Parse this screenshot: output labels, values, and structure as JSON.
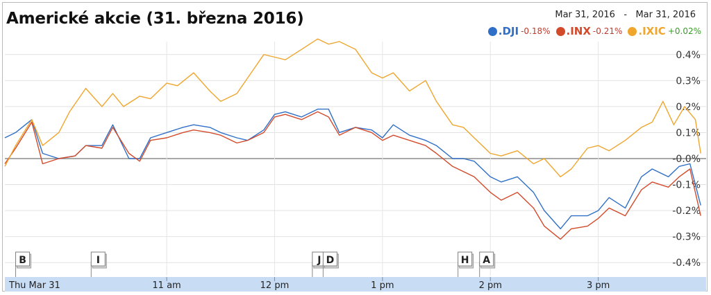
{
  "chart_data": {
    "type": "line",
    "title": "Americké akcie (31. března 2016)",
    "date_range": {
      "start": "Mar 31, 2016",
      "separator": "-",
      "end": "Mar 31, 2016"
    },
    "x_axis": {
      "ticks": [
        {
          "t": 9.5,
          "label": "Thu Mar 31"
        },
        {
          "t": 11,
          "label": "11 am"
        },
        {
          "t": 12,
          "label": "12 pm"
        },
        {
          "t": 13,
          "label": "1 pm"
        },
        {
          "t": 14,
          "label": "2 pm"
        },
        {
          "t": 15,
          "label": "3 pm"
        }
      ]
    },
    "y_axis": {
      "unit": "%",
      "ylim": [
        -0.45,
        0.45
      ],
      "ticks": [
        {
          "v": 0.4,
          "label": "0.4%"
        },
        {
          "v": 0.3,
          "label": "0.3%"
        },
        {
          "v": 0.2,
          "label": "0.2%"
        },
        {
          "v": 0.1,
          "label": "0.1%"
        },
        {
          "v": 0.0,
          "label": "-0.0%"
        },
        {
          "v": -0.1,
          "label": "-0.1%"
        },
        {
          "v": -0.2,
          "label": "-0.2%"
        },
        {
          "v": -0.3,
          "label": "-0.3%"
        },
        {
          "v": -0.4,
          "label": "-0.4%"
        }
      ]
    },
    "grid": true,
    "legend_position": "top-right",
    "series": [
      {
        "name": ".DJI",
        "change": "-0.18%",
        "color": "#2f6fc7",
        "change_color": "#c0392b",
        "points": [
          [
            9.5,
            0.08
          ],
          [
            9.6,
            0.1
          ],
          [
            9.75,
            0.15
          ],
          [
            9.85,
            0.02
          ],
          [
            10.0,
            0.0
          ],
          [
            10.15,
            0.01
          ],
          [
            10.25,
            0.05
          ],
          [
            10.4,
            0.05
          ],
          [
            10.5,
            0.13
          ],
          [
            10.65,
            0.0
          ],
          [
            10.75,
            0.0
          ],
          [
            10.85,
            0.08
          ],
          [
            11.0,
            0.1
          ],
          [
            11.15,
            0.12
          ],
          [
            11.25,
            0.13
          ],
          [
            11.4,
            0.12
          ],
          [
            11.5,
            0.1
          ],
          [
            11.65,
            0.08
          ],
          [
            11.75,
            0.07
          ],
          [
            11.9,
            0.11
          ],
          [
            12.0,
            0.17
          ],
          [
            12.1,
            0.18
          ],
          [
            12.25,
            0.16
          ],
          [
            12.4,
            0.19
          ],
          [
            12.5,
            0.19
          ],
          [
            12.6,
            0.1
          ],
          [
            12.75,
            0.12
          ],
          [
            12.9,
            0.11
          ],
          [
            13.0,
            0.08
          ],
          [
            13.1,
            0.13
          ],
          [
            13.25,
            0.09
          ],
          [
            13.4,
            0.07
          ],
          [
            13.5,
            0.05
          ],
          [
            13.65,
            0.0
          ],
          [
            13.75,
            0.0
          ],
          [
            13.85,
            -0.01
          ],
          [
            14.0,
            -0.07
          ],
          [
            14.1,
            -0.09
          ],
          [
            14.25,
            -0.07
          ],
          [
            14.4,
            -0.13
          ],
          [
            14.5,
            -0.2
          ],
          [
            14.65,
            -0.27
          ],
          [
            14.75,
            -0.22
          ],
          [
            14.9,
            -0.22
          ],
          [
            15.0,
            -0.2
          ],
          [
            15.1,
            -0.15
          ],
          [
            15.25,
            -0.19
          ],
          [
            15.4,
            -0.07
          ],
          [
            15.5,
            -0.04
          ],
          [
            15.65,
            -0.07
          ],
          [
            15.75,
            -0.03
          ],
          [
            15.85,
            -0.02
          ],
          [
            15.95,
            -0.18
          ]
        ]
      },
      {
        "name": ".INX",
        "change": "-0.21%",
        "color": "#d24a2a",
        "change_color": "#c0392b",
        "points": [
          [
            9.5,
            -0.02
          ],
          [
            9.6,
            0.04
          ],
          [
            9.75,
            0.14
          ],
          [
            9.85,
            -0.02
          ],
          [
            10.0,
            0.0
          ],
          [
            10.15,
            0.01
          ],
          [
            10.25,
            0.05
          ],
          [
            10.4,
            0.04
          ],
          [
            10.5,
            0.12
          ],
          [
            10.65,
            0.02
          ],
          [
            10.75,
            -0.01
          ],
          [
            10.85,
            0.07
          ],
          [
            11.0,
            0.08
          ],
          [
            11.15,
            0.1
          ],
          [
            11.25,
            0.11
          ],
          [
            11.4,
            0.1
          ],
          [
            11.5,
            0.09
          ],
          [
            11.65,
            0.06
          ],
          [
            11.75,
            0.07
          ],
          [
            11.9,
            0.1
          ],
          [
            12.0,
            0.16
          ],
          [
            12.1,
            0.17
          ],
          [
            12.25,
            0.15
          ],
          [
            12.4,
            0.18
          ],
          [
            12.5,
            0.16
          ],
          [
            12.6,
            0.09
          ],
          [
            12.75,
            0.12
          ],
          [
            12.9,
            0.1
          ],
          [
            13.0,
            0.07
          ],
          [
            13.1,
            0.09
          ],
          [
            13.25,
            0.07
          ],
          [
            13.4,
            0.05
          ],
          [
            13.5,
            0.02
          ],
          [
            13.65,
            -0.03
          ],
          [
            13.75,
            -0.05
          ],
          [
            13.85,
            -0.07
          ],
          [
            14.0,
            -0.13
          ],
          [
            14.1,
            -0.16
          ],
          [
            14.25,
            -0.13
          ],
          [
            14.4,
            -0.19
          ],
          [
            14.5,
            -0.26
          ],
          [
            14.65,
            -0.31
          ],
          [
            14.75,
            -0.27
          ],
          [
            14.9,
            -0.26
          ],
          [
            15.0,
            -0.23
          ],
          [
            15.1,
            -0.19
          ],
          [
            15.25,
            -0.22
          ],
          [
            15.4,
            -0.12
          ],
          [
            15.5,
            -0.09
          ],
          [
            15.65,
            -0.11
          ],
          [
            15.75,
            -0.07
          ],
          [
            15.85,
            -0.04
          ],
          [
            15.95,
            -0.22
          ]
        ]
      },
      {
        "name": ".IXIC",
        "change": "+0.02%",
        "color": "#f0a52c",
        "change_color": "#3a9a2a",
        "points": [
          [
            9.5,
            -0.03
          ],
          [
            9.6,
            0.05
          ],
          [
            9.75,
            0.15
          ],
          [
            9.85,
            0.05
          ],
          [
            10.0,
            0.1
          ],
          [
            10.1,
            0.18
          ],
          [
            10.25,
            0.27
          ],
          [
            10.4,
            0.2
          ],
          [
            10.5,
            0.25
          ],
          [
            10.6,
            0.2
          ],
          [
            10.75,
            0.24
          ],
          [
            10.85,
            0.23
          ],
          [
            11.0,
            0.29
          ],
          [
            11.1,
            0.28
          ],
          [
            11.25,
            0.33
          ],
          [
            11.4,
            0.26
          ],
          [
            11.5,
            0.22
          ],
          [
            11.65,
            0.25
          ],
          [
            11.75,
            0.31
          ],
          [
            11.9,
            0.4
          ],
          [
            12.0,
            0.39
          ],
          [
            12.1,
            0.38
          ],
          [
            12.25,
            0.42
          ],
          [
            12.4,
            0.46
          ],
          [
            12.5,
            0.44
          ],
          [
            12.6,
            0.45
          ],
          [
            12.75,
            0.42
          ],
          [
            12.9,
            0.33
          ],
          [
            13.0,
            0.31
          ],
          [
            13.1,
            0.33
          ],
          [
            13.25,
            0.26
          ],
          [
            13.4,
            0.3
          ],
          [
            13.5,
            0.22
          ],
          [
            13.65,
            0.13
          ],
          [
            13.75,
            0.12
          ],
          [
            13.85,
            0.08
          ],
          [
            14.0,
            0.02
          ],
          [
            14.1,
            0.01
          ],
          [
            14.25,
            0.03
          ],
          [
            14.4,
            -0.02
          ],
          [
            14.5,
            0.0
          ],
          [
            14.65,
            -0.07
          ],
          [
            14.75,
            -0.04
          ],
          [
            14.9,
            0.04
          ],
          [
            15.0,
            0.05
          ],
          [
            15.1,
            0.03
          ],
          [
            15.25,
            0.07
          ],
          [
            15.4,
            0.12
          ],
          [
            15.5,
            0.14
          ],
          [
            15.6,
            0.22
          ],
          [
            15.7,
            0.13
          ],
          [
            15.8,
            0.2
          ],
          [
            15.9,
            0.15
          ],
          [
            15.95,
            0.02
          ]
        ]
      }
    ],
    "event_markers": [
      {
        "t": 9.6,
        "label": "B"
      },
      {
        "t": 10.3,
        "label": "I"
      },
      {
        "t": 12.35,
        "label": "J"
      },
      {
        "t": 12.45,
        "label": "D"
      },
      {
        "t": 13.7,
        "label": "H"
      },
      {
        "t": 13.9,
        "label": "A"
      }
    ]
  }
}
